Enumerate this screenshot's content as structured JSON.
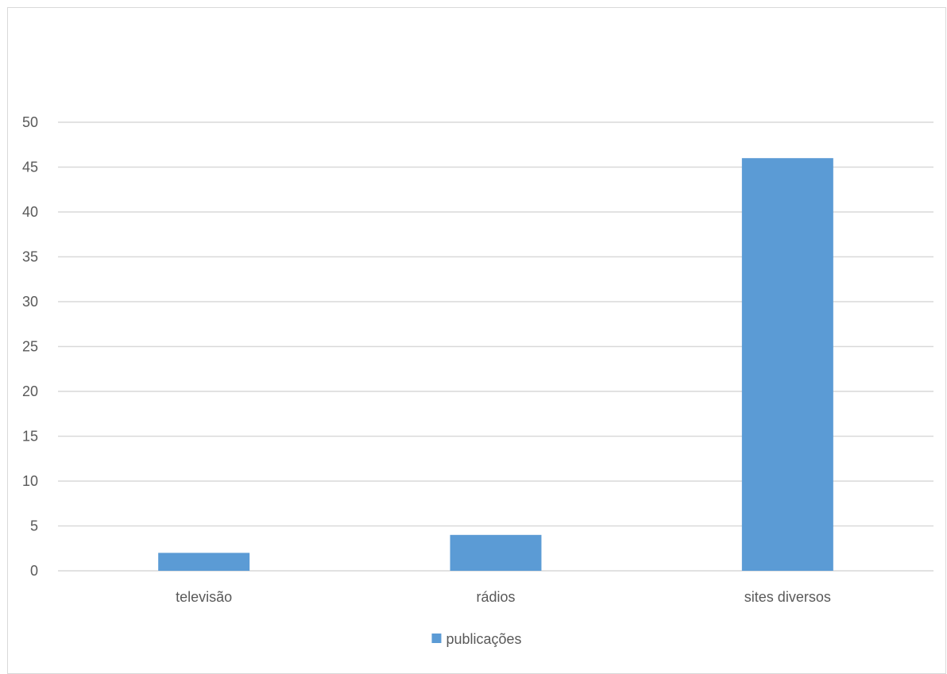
{
  "chart_data": {
    "type": "bar",
    "title": "",
    "xlabel": "",
    "ylabel": "",
    "categories": [
      "televisão",
      "rádios",
      "sites diversos"
    ],
    "series": [
      {
        "name": "publicações",
        "values": [
          2,
          4,
          46
        ],
        "color": "#5b9bd5"
      }
    ],
    "ylim": [
      0,
      50
    ],
    "yticks": [
      0,
      5,
      10,
      15,
      20,
      25,
      30,
      35,
      40,
      45,
      50
    ],
    "grid": true,
    "gridline_color": "#d9d9d9",
    "legend_position": "bottom"
  }
}
